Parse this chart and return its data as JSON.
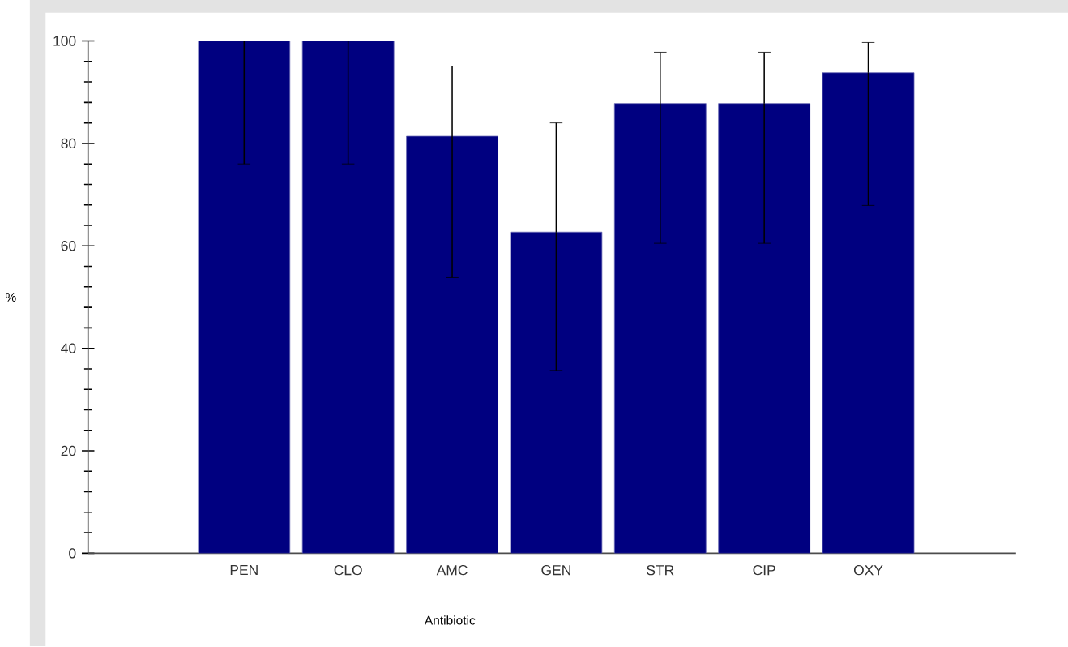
{
  "chart_data": {
    "type": "bar",
    "xlabel": "Antibiotic",
    "ylabel": "%",
    "categories": [
      null,
      "PEN",
      "CLO",
      "AMC",
      "GEN",
      "STR",
      "CIP",
      "OXY",
      null
    ],
    "values": [
      null,
      100,
      100,
      81.4,
      62.7,
      87.8,
      87.8,
      93.8,
      null
    ],
    "errors": [
      null,
      [
        76,
        100
      ],
      [
        76,
        100
      ],
      [
        53.8,
        95.1
      ],
      [
        35.7,
        84
      ],
      [
        60.5,
        97.8
      ],
      [
        60.5,
        97.8
      ],
      [
        67.9,
        99.7
      ],
      null
    ],
    "color": "#000080",
    "ylim": [
      0,
      100
    ],
    "yticks": [
      0,
      20,
      40,
      60,
      80,
      100
    ],
    "grid": false
  }
}
